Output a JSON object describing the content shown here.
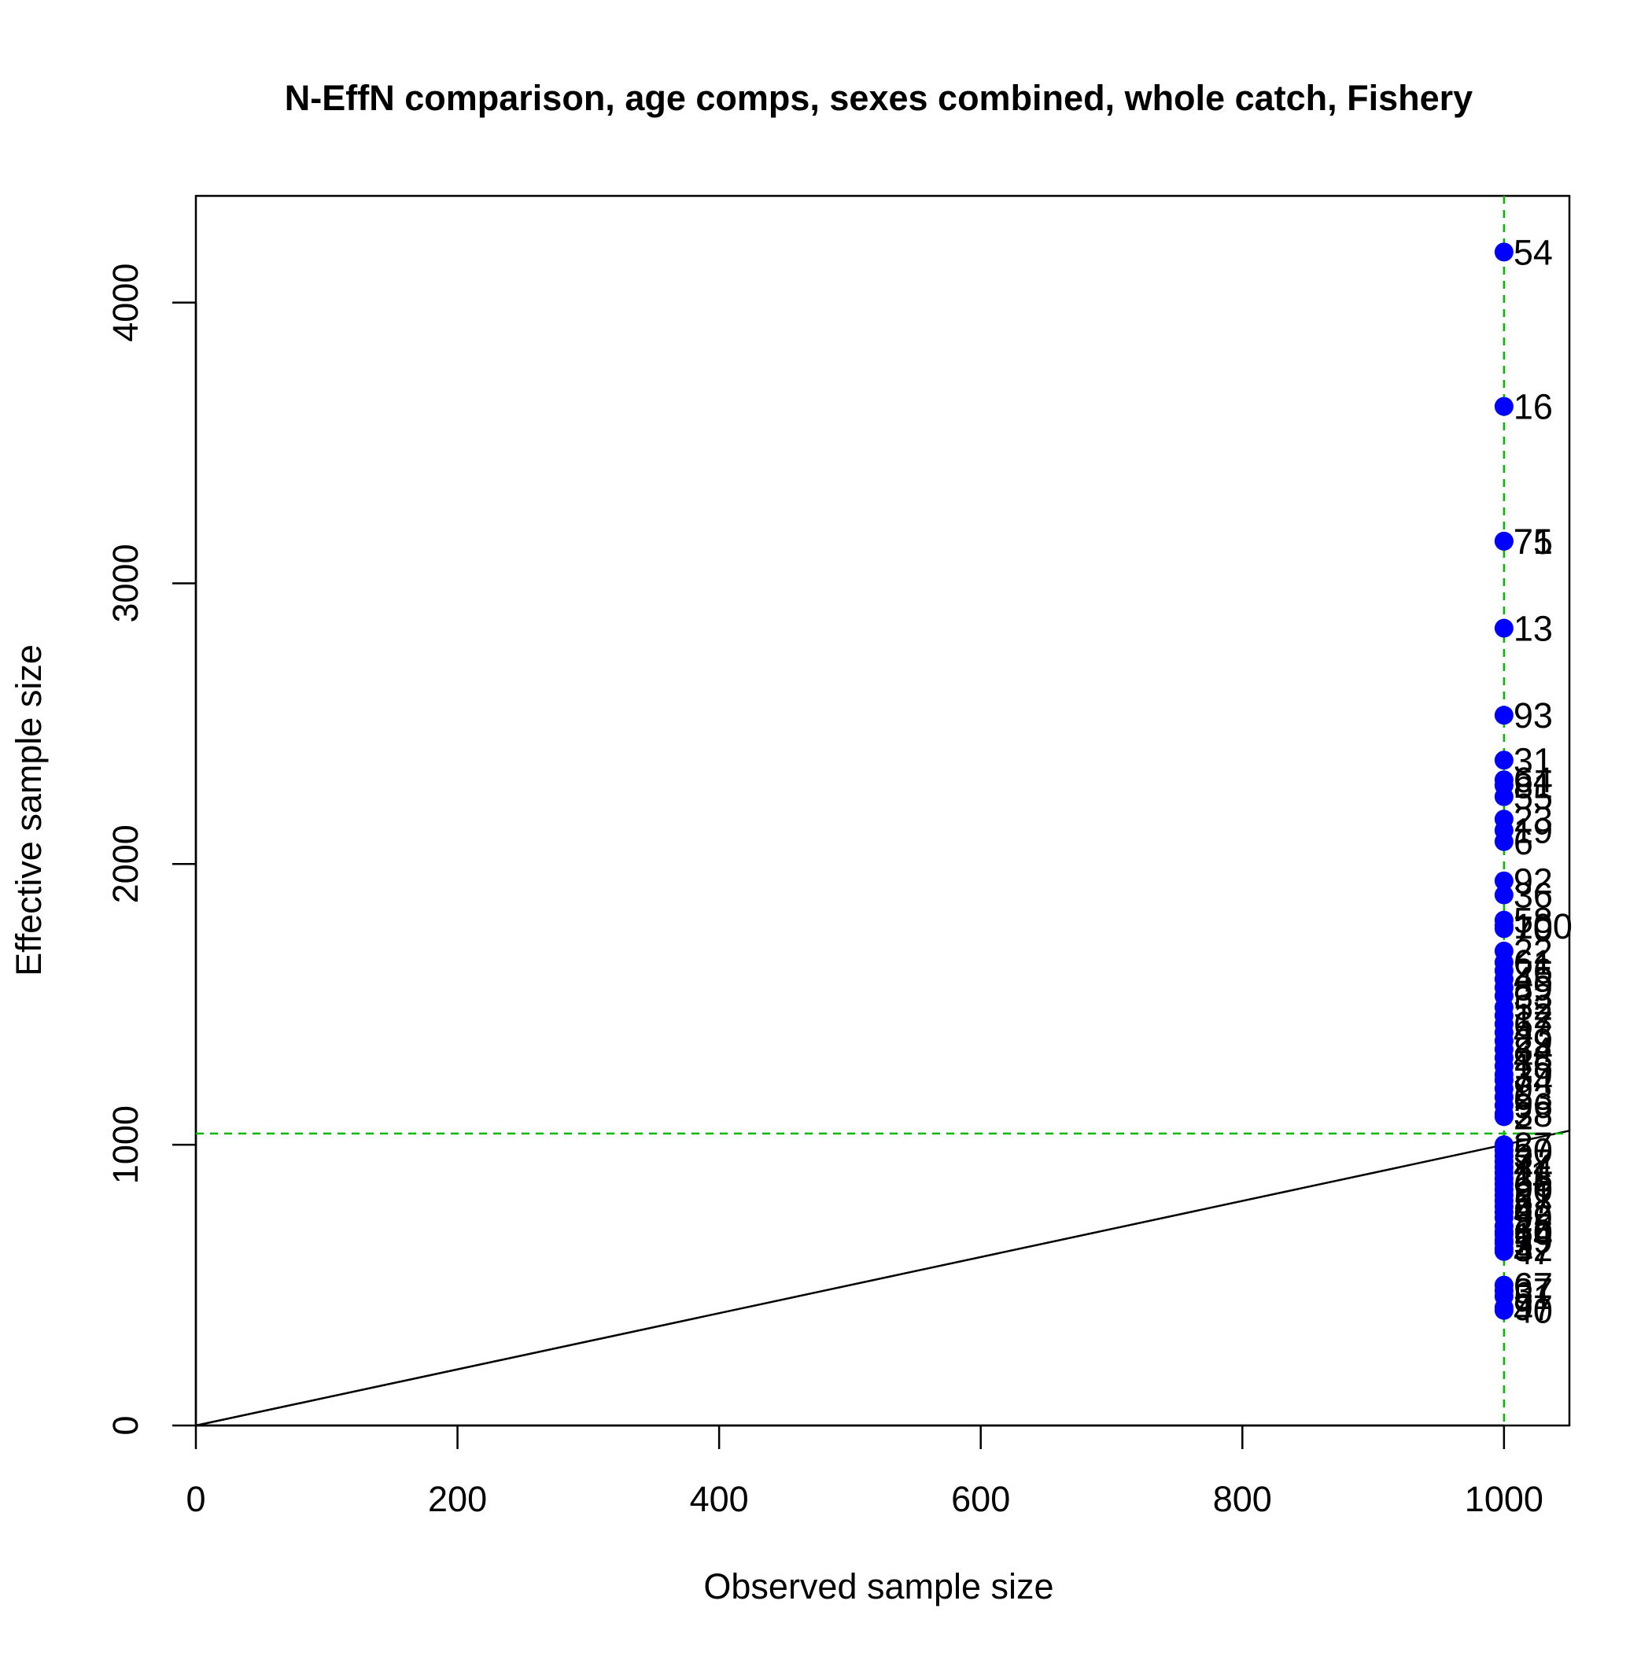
{
  "chart_data": {
    "type": "scatter",
    "title": "N-EffN comparison, age comps, sexes combined, whole catch, Fishery",
    "xlabel": "Observed sample size",
    "ylabel": "Effective sample size",
    "xlim": [
      0,
      1050
    ],
    "ylim": [
      0,
      4380
    ],
    "x_ticks": [
      0,
      200,
      400,
      600,
      800,
      1000
    ],
    "y_ticks": [
      0,
      1000,
      2000,
      3000,
      4000
    ],
    "grid": false,
    "legend": "none",
    "colors": {
      "points": "#0000ff",
      "reference_lines": "#00bb00",
      "one_to_one": "#000000",
      "text": "#000000"
    },
    "reference_lines": {
      "vertical_x": 1000,
      "horizontal_y": 1040
    },
    "one_to_one_line": {
      "from": [
        0,
        0
      ],
      "to": [
        1050,
        1050
      ]
    },
    "series": [
      {
        "x": [
          1000,
          1000,
          1000,
          1000,
          1000,
          1000,
          1000,
          1000,
          1000,
          1000,
          1000,
          1000,
          1000,
          1000,
          1000,
          1000,
          1000,
          1000,
          1000,
          1000,
          1000,
          1000,
          1000,
          1000,
          1000,
          1000,
          1000,
          1000,
          1000,
          1000,
          1000,
          1000,
          1000,
          1000,
          1000,
          1000,
          1000,
          1000,
          1000,
          1000,
          1000,
          1000,
          1000,
          1000,
          1000,
          1000,
          1000,
          1000,
          1000,
          1000,
          1000,
          1000,
          1000,
          1000,
          1000,
          1000,
          1000,
          1000,
          1000,
          1000,
          1000,
          1000,
          1000,
          1000,
          1000
        ],
        "y": [
          4180,
          3630,
          3150,
          3150,
          2840,
          2530,
          2370,
          2300,
          2280,
          2240,
          2160,
          2120,
          2080,
          1940,
          1890,
          1800,
          1780,
          1770,
          1690,
          1650,
          1620,
          1590,
          1560,
          1530,
          1490,
          1460,
          1430,
          1400,
          1370,
          1340,
          1310,
          1280,
          1250,
          1230,
          1200,
          1170,
          1140,
          1110,
          1100,
          1000,
          980,
          960,
          940,
          920,
          900,
          880,
          860,
          840,
          820,
          800,
          780,
          760,
          740,
          710,
          690,
          680,
          660,
          650,
          630,
          620,
          500,
          480,
          460,
          420,
          410
        ],
        "labels": [
          "54",
          "16",
          "75",
          "71",
          "13",
          "93",
          "31",
          "64",
          "81",
          "55",
          "23",
          "19",
          "6",
          "92",
          "36",
          "58",
          "100",
          "70",
          "22",
          "61",
          "26",
          "45",
          "89",
          "33",
          "52",
          "12",
          "67",
          "43",
          "29",
          "84",
          "48",
          "15",
          "39",
          "74",
          "9",
          "63",
          "96",
          "38",
          "2",
          "27",
          "50",
          "3",
          "77",
          "44",
          "11",
          "35",
          "66",
          "90",
          "21",
          "57",
          "8",
          "42",
          "99",
          "25",
          "60",
          "14",
          "79",
          "5",
          "32",
          "47",
          "67",
          "37",
          "51",
          "97",
          "40"
        ]
      }
    ]
  }
}
